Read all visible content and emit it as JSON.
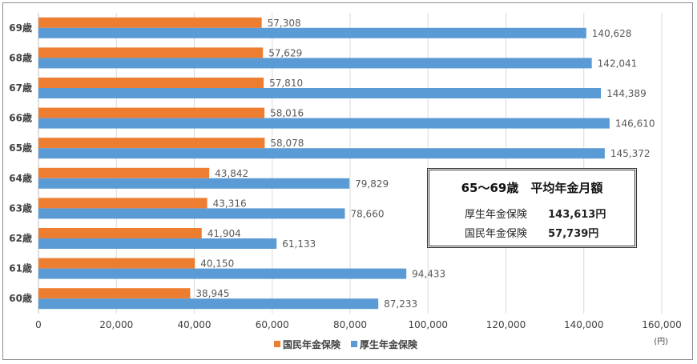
{
  "chart_data": {
    "type": "bar",
    "orientation": "horizontal",
    "categories": [
      "69歳",
      "68歳",
      "67歳",
      "66歳",
      "65歳",
      "64歳",
      "63歳",
      "62歳",
      "61歳",
      "60歳"
    ],
    "series": [
      {
        "name": "国民年金保険",
        "color": "#ED7D31",
        "values": [
          57308,
          57629,
          57810,
          58016,
          58078,
          43842,
          43316,
          41904,
          40150,
          38945
        ]
      },
      {
        "name": "厚生年金保険",
        "color": "#5B9BD5",
        "values": [
          140628,
          142041,
          144389,
          146610,
          145372,
          79829,
          78660,
          61133,
          94433,
          87233
        ]
      }
    ],
    "xlim": [
      0,
      160000
    ],
    "xticks": [
      0,
      20000,
      40000,
      60000,
      80000,
      100000,
      120000,
      140000,
      160000
    ],
    "xtick_labels": [
      "0",
      "20,000",
      "40,000",
      "60,000",
      "80,000",
      "100,000",
      "120,000",
      "140,000",
      "160,000"
    ],
    "unit_label": "(円)",
    "grid": "vertical",
    "legend_position": "bottom"
  },
  "summary": {
    "title": "65～69歳　平均年金月額",
    "rows": [
      {
        "label": "厚生年金保険",
        "value": "143,613円"
      },
      {
        "label": "国民年金保険",
        "value": "57,739円"
      }
    ]
  }
}
